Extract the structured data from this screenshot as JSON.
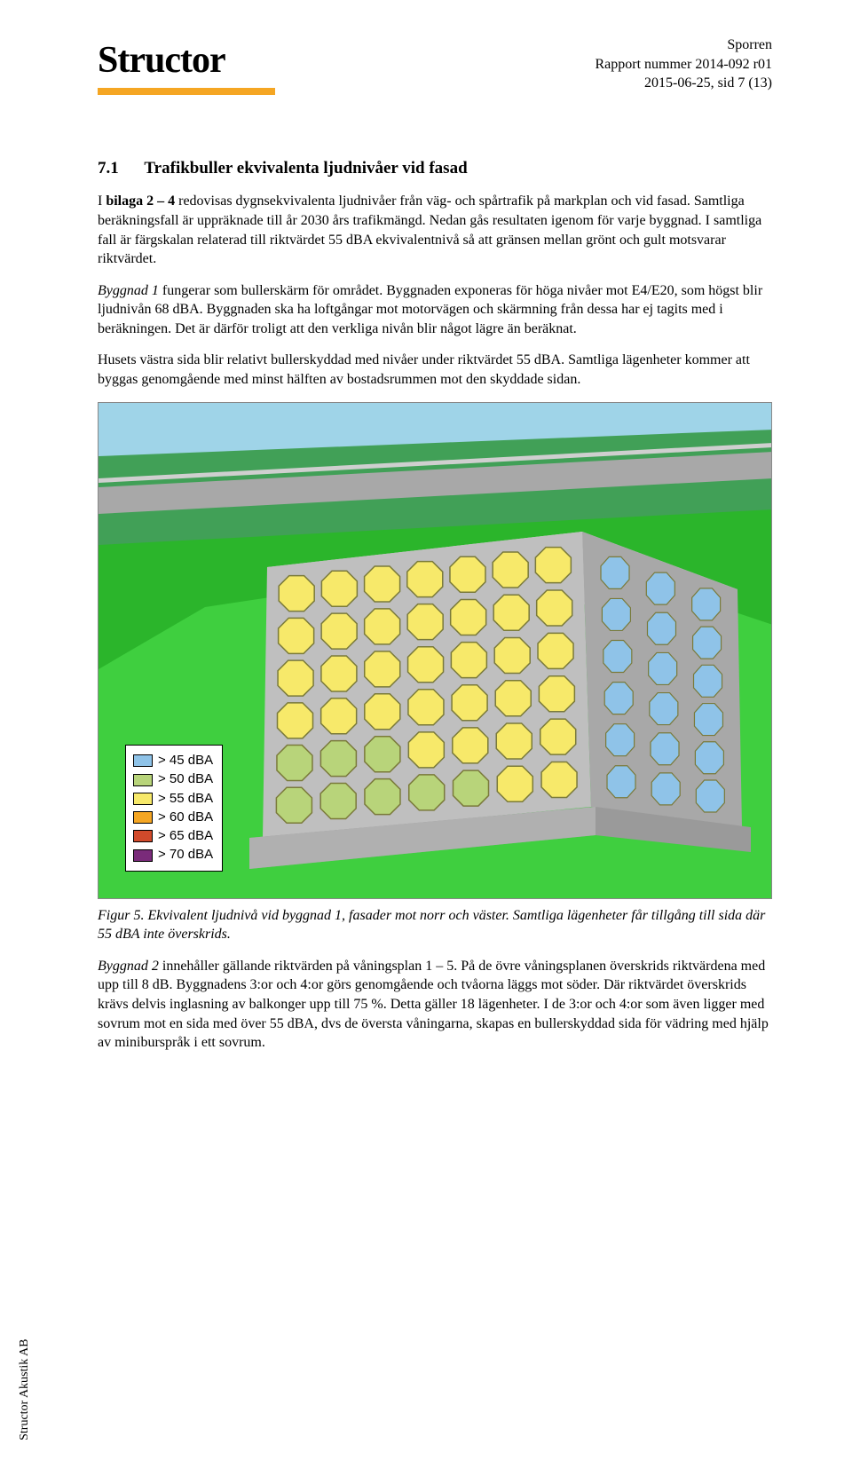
{
  "header": {
    "logo_text": "Structor",
    "project": "Sporren",
    "report_no": "Rapport nummer 2014-092 r01",
    "date_page": "2015-06-25, sid 7 (13)"
  },
  "section": {
    "number": "7.1",
    "title": "Trafikbuller ekvivalenta ljudnivåer vid fasad"
  },
  "para1_prefix": "I ",
  "para1_bold": "bilaga 2 – 4",
  "para1_rest": " redovisas dygnsekvivalenta ljudnivåer från väg- och spårtrafik på markplan och vid fasad. Samtliga beräkningsfall är uppräknade till år 2030 års trafikmängd. Nedan gås resultaten igenom för varje byggnad. I samtliga fall är färgskalan relaterad till riktvärdet 55 dBA ekvivalentnivå så att gränsen mellan grönt och gult motsvarar riktvärdet.",
  "para2_italic": "Byggnad 1",
  "para2_rest": " fungerar som bullerskärm för området. Byggnaden exponeras för höga nivåer mot E4/E20, som högst blir ljudnivån 68 dBA. Byggnaden ska ha loftgångar mot motorvägen och skärmning från dessa har ej tagits med i beräkningen. Det är därför troligt att den verkliga nivån blir något lägre än beräknat.",
  "para3": "Husets västra sida blir relativt bullerskyddad med nivåer under riktvärdet 55 dBA. Samtliga lägenheter kommer att byggas genomgående med minst hälften av bostadsrummen mot den skyddade sidan.",
  "figure": {
    "bg_sky": "#9fd4e8",
    "bg_ground": "#2bb52b",
    "bg_ground_dark": "#1a8a1a",
    "road_color": "#a8a8a8",
    "building_top": "#d8d8d8",
    "building_front": "#bfbfbf",
    "building_side": "#a8a8a8",
    "base_color": "#9a9a9a",
    "window_yellow": "#f7e96a",
    "window_green": "#b8d47a",
    "window_blue": "#8fc3e8",
    "window_stroke": "#7a7a3a",
    "legend": [
      {
        "label": "> 45 dBA",
        "color": "#8fc3e8"
      },
      {
        "label": "> 50 dBA",
        "color": "#b8d47a"
      },
      {
        "label": "> 55 dBA",
        "color": "#f7e96a"
      },
      {
        "label": "> 60 dBA",
        "color": "#f5a623"
      },
      {
        "label": "> 65 dBA",
        "color": "#d14a2b"
      },
      {
        "label": "> 70 dBA",
        "color": "#7a2b7a"
      }
    ],
    "front_face": {
      "rows": 6,
      "cols": 7,
      "colors": [
        [
          "y",
          "y",
          "y",
          "y",
          "y",
          "y",
          "y"
        ],
        [
          "y",
          "y",
          "y",
          "y",
          "y",
          "y",
          "y"
        ],
        [
          "y",
          "y",
          "y",
          "y",
          "y",
          "y",
          "y"
        ],
        [
          "y",
          "y",
          "y",
          "y",
          "y",
          "y",
          "y"
        ],
        [
          "g",
          "g",
          "g",
          "y",
          "y",
          "y",
          "y"
        ],
        [
          "g",
          "g",
          "g",
          "g",
          "g",
          "y",
          "y"
        ]
      ]
    },
    "side_face": {
      "rows": 6,
      "cols": 3,
      "colors": [
        [
          "b",
          "b",
          "b"
        ],
        [
          "b",
          "b",
          "b"
        ],
        [
          "b",
          "b",
          "b"
        ],
        [
          "b",
          "b",
          "b"
        ],
        [
          "b",
          "b",
          "b"
        ],
        [
          "b",
          "b",
          "b"
        ]
      ]
    }
  },
  "caption": "Figur 5. Ekvivalent ljudnivå vid byggnad 1, fasader mot norr och väster. Samtliga lägenheter får tillgång till sida där 55 dBA inte överskrids.",
  "para4_italic": "Byggnad 2",
  "para4_rest": " innehåller gällande riktvärden på våningsplan 1 – 5. På de övre våningsplanen överskrids riktvärdena med upp till 8 dB. Byggnadens 3:or och 4:or görs genomgående och tvåorna läggs mot söder. Där riktvärdet överskrids krävs delvis inglasning av balkonger upp till 75 %. Detta gäller 18 lägenheter. I de 3:or och 4:or som även ligger med sovrum mot en sida med över 55 dBA, dvs de översta våningarna, skapas en bullerskyddad sida för vädring med hjälp av miniburspråk i ett sovrum.",
  "side_label": "Structor Akustik AB"
}
